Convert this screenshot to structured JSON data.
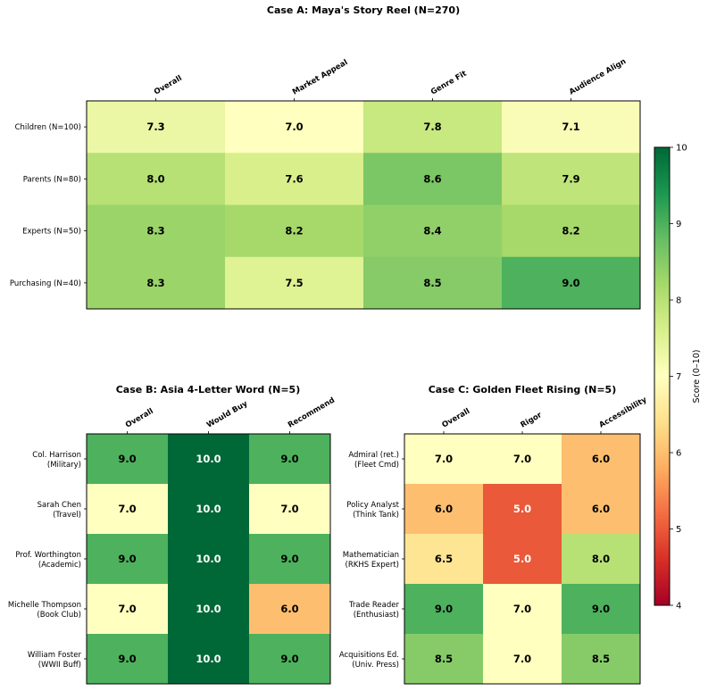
{
  "chart_data": [
    {
      "type": "heatmap",
      "title": "Case A: Maya's Story Reel (N=270)",
      "columns": [
        "Overall",
        "Market Appeal",
        "Genre Fit",
        "Audience Align"
      ],
      "rows": [
        "Children (N=100)",
        "Parents (N=80)",
        "Experts (N=50)",
        "Purchasing (N=40)"
      ],
      "values": [
        [
          7.3,
          7.0,
          7.8,
          7.1
        ],
        [
          8.0,
          7.6,
          8.6,
          7.9
        ],
        [
          8.3,
          8.2,
          8.4,
          8.2
        ],
        [
          8.3,
          7.5,
          8.5,
          9.0
        ]
      ]
    },
    {
      "type": "heatmap",
      "title": "Case B: Asia 4-Letter Word (N=5)",
      "columns": [
        "Overall",
        "Would Buy",
        "Recommend"
      ],
      "rows": [
        [
          "Col. Harrison",
          "(Military)"
        ],
        [
          "Sarah Chen",
          "(Travel)"
        ],
        [
          "Prof. Worthington",
          "(Academic)"
        ],
        [
          "Michelle Thompson",
          "(Book Club)"
        ],
        [
          "William Foster",
          "(WWII Buff)"
        ]
      ],
      "values": [
        [
          9.0,
          10.0,
          9.0
        ],
        [
          7.0,
          10.0,
          7.0
        ],
        [
          9.0,
          10.0,
          9.0
        ],
        [
          7.0,
          10.0,
          6.0
        ],
        [
          9.0,
          10.0,
          9.0
        ]
      ]
    },
    {
      "type": "heatmap",
      "title": "Case C: Golden Fleet Rising (N=5)",
      "columns": [
        "Overall",
        "Rigor",
        "Accessibility"
      ],
      "rows": [
        [
          "Admiral (ret.)",
          "(Fleet Cmd)"
        ],
        [
          "Policy Analyst",
          "(Think Tank)"
        ],
        [
          "Mathematician",
          "(RKHS Expert)"
        ],
        [
          "Trade Reader",
          "(Enthusiast)"
        ],
        [
          "Acquisitions Ed.",
          "(Univ. Press)"
        ]
      ],
      "values": [
        [
          7.0,
          7.0,
          6.0
        ],
        [
          6.0,
          5.0,
          6.0
        ],
        [
          6.5,
          5.0,
          8.0
        ],
        [
          9.0,
          7.0,
          9.0
        ],
        [
          8.5,
          7.0,
          8.5
        ]
      ]
    }
  ],
  "colorbar": {
    "label": "Score (0–10)",
    "range": [
      4,
      10
    ],
    "ticks": [
      "4",
      "5",
      "6",
      "7",
      "8",
      "9",
      "10"
    ],
    "colormap": "RdYlGn"
  }
}
